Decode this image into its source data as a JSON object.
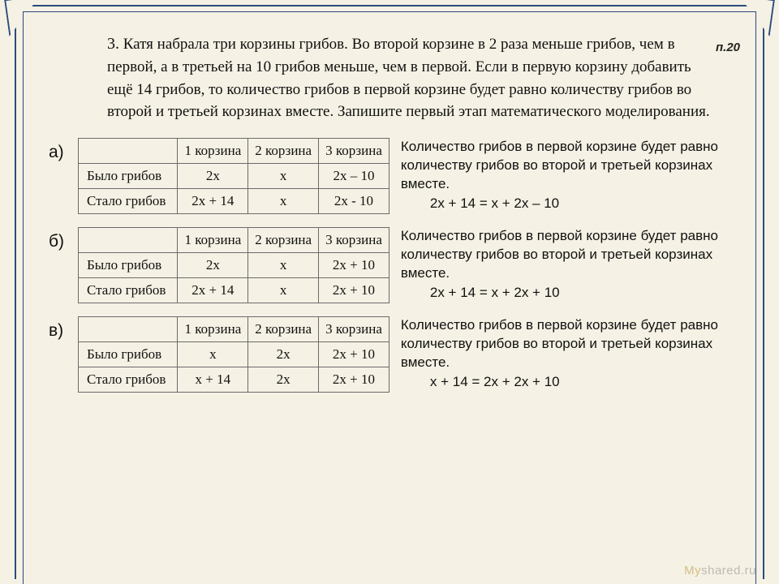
{
  "page_ref": "п.20",
  "problem_number": "3.",
  "problem_text": "Катя набрала три корзины грибов. Во второй корзине в 2 раза меньше грибов, чем в первой, а в третьей на 10 грибов меньше, чем в первой. Если в первую корзину добавить ещё 14 грибов, то количество грибов в первой корзине будет равно количеству грибов во второй и третьей корзинах вместе. Запишите первый этап математического моделирования.",
  "columns": [
    "1 корзина",
    "2 корзина",
    "3 корзина"
  ],
  "row_labels": [
    "Было грибов",
    "Стало грибов"
  ],
  "options": [
    {
      "label": "а)",
      "rows": [
        [
          "2x",
          "x",
          "2x – 10"
        ],
        [
          "2x + 14",
          "x",
          "2x - 10"
        ]
      ],
      "explain": "Количество грибов в первой корзине будет равно количеству грибов во второй и третьей корзинах вместе.",
      "equation": "2x + 14 = x + 2x – 10"
    },
    {
      "label": "б)",
      "rows": [
        [
          "2x",
          "x",
          "2x + 10"
        ],
        [
          "2x + 14",
          "x",
          "2x + 10"
        ]
      ],
      "explain": "Количество грибов в первой корзине будет равно количеству грибов во второй и третьей корзинах вместе.",
      "equation": "2x + 14 = x + 2x + 10"
    },
    {
      "label": "в)",
      "rows": [
        [
          "x",
          "2x",
          "2x + 10"
        ],
        [
          "x + 14",
          "2x",
          "2x + 10"
        ]
      ],
      "explain": "Количество грибов в первой корзине будет равно количеству грибов во второй и третьей корзинах вместе.",
      "equation": "x + 14 = 2x + 2x + 10"
    }
  ],
  "watermark": {
    "a": "Мy",
    "b": "shared.ru"
  },
  "col_widths": {
    "blank": 118,
    "col": 86
  }
}
